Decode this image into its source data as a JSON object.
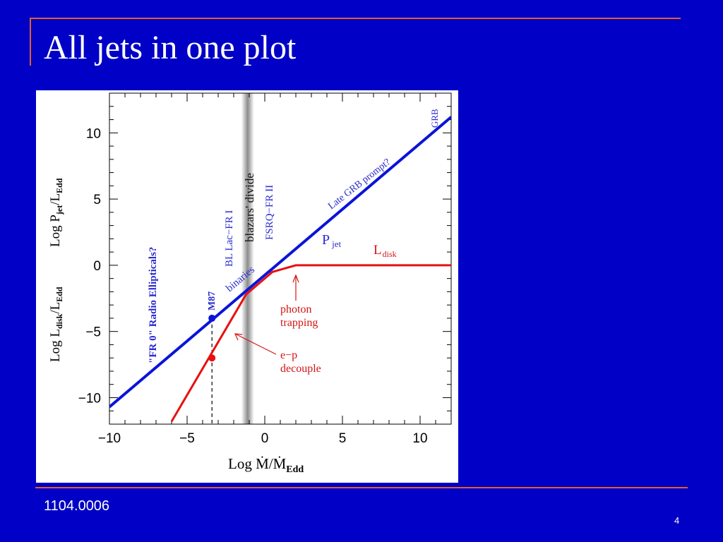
{
  "slide": {
    "title": "All jets in one plot",
    "footer": "1104.0006",
    "page_number": "4"
  },
  "colors": {
    "background": "#0000c6",
    "frame": "#e06030",
    "jet_line": "#0a14d8",
    "disk_line": "#e81010",
    "label_blue": "#2a2ad0",
    "label_red": "#d41414"
  },
  "chart_data": {
    "type": "line",
    "title": "",
    "xlabel": "Log Ṁ/Ṁ_Edd",
    "ylabel": "Log L_disk/L_Edd     Log P_jet/L_Edd",
    "xlim": [
      -10,
      12
    ],
    "ylim": [
      -12,
      13
    ],
    "x_ticks": [
      -10,
      -5,
      0,
      5,
      10
    ],
    "x_tick_labels": [
      "−10",
      "−5",
      "0",
      "5",
      "10"
    ],
    "y_ticks": [
      -10,
      -5,
      0,
      5,
      10
    ],
    "y_tick_labels": [
      "−10",
      "−5",
      "0",
      "5",
      "10"
    ],
    "grid": false,
    "series": [
      {
        "name": "P_jet",
        "color": "#0a14d8",
        "x": [
          -10,
          12
        ],
        "y": [
          -10.7,
          11.2
        ]
      },
      {
        "name": "L_disk",
        "color": "#e81010",
        "x": [
          -6,
          -1.2,
          0.5,
          2,
          12
        ],
        "y": [
          -11.8,
          -2.2,
          -0.5,
          0,
          0
        ]
      }
    ],
    "points": [
      {
        "label": "M87",
        "x": -3.4,
        "y": -4.0,
        "color": "#0a14d8"
      },
      {
        "label": "",
        "x": -3.4,
        "y": -7.0,
        "color": "#e81010"
      }
    ],
    "vertical_band": {
      "label": "blazars' divide",
      "x": -1.1
    },
    "annotations": {
      "fr0": "\"FR 0\" Radio Ellipticals?",
      "m87": "M87",
      "bllac": "BL Lac−FR I",
      "blazars_divide": "blazars' divide",
      "fsrq": "FSRQ−FR II",
      "binaries": "binaries",
      "late_grb": "Late GRB prompt?",
      "grb": "GRB",
      "pjet_main": "P",
      "pjet_sub": "jet",
      "ldisk_main": "L",
      "ldisk_sub": "disk",
      "photon_1": "photon",
      "photon_2": "trapping",
      "ep_1": "e−p",
      "ep_2": "decouple"
    },
    "axis_label_parts": {
      "x_main": "Log  Ṁ/Ṁ",
      "x_sub": "Edd",
      "y_disk_main": "Log  L",
      "y_disk_sub1": "disk",
      "y_disk_mid": "/L",
      "y_disk_sub2": "Edd",
      "y_jet_main": "Log  P",
      "y_jet_sub1": "jet",
      "y_jet_mid": "/L",
      "y_jet_sub2": "Edd"
    }
  }
}
